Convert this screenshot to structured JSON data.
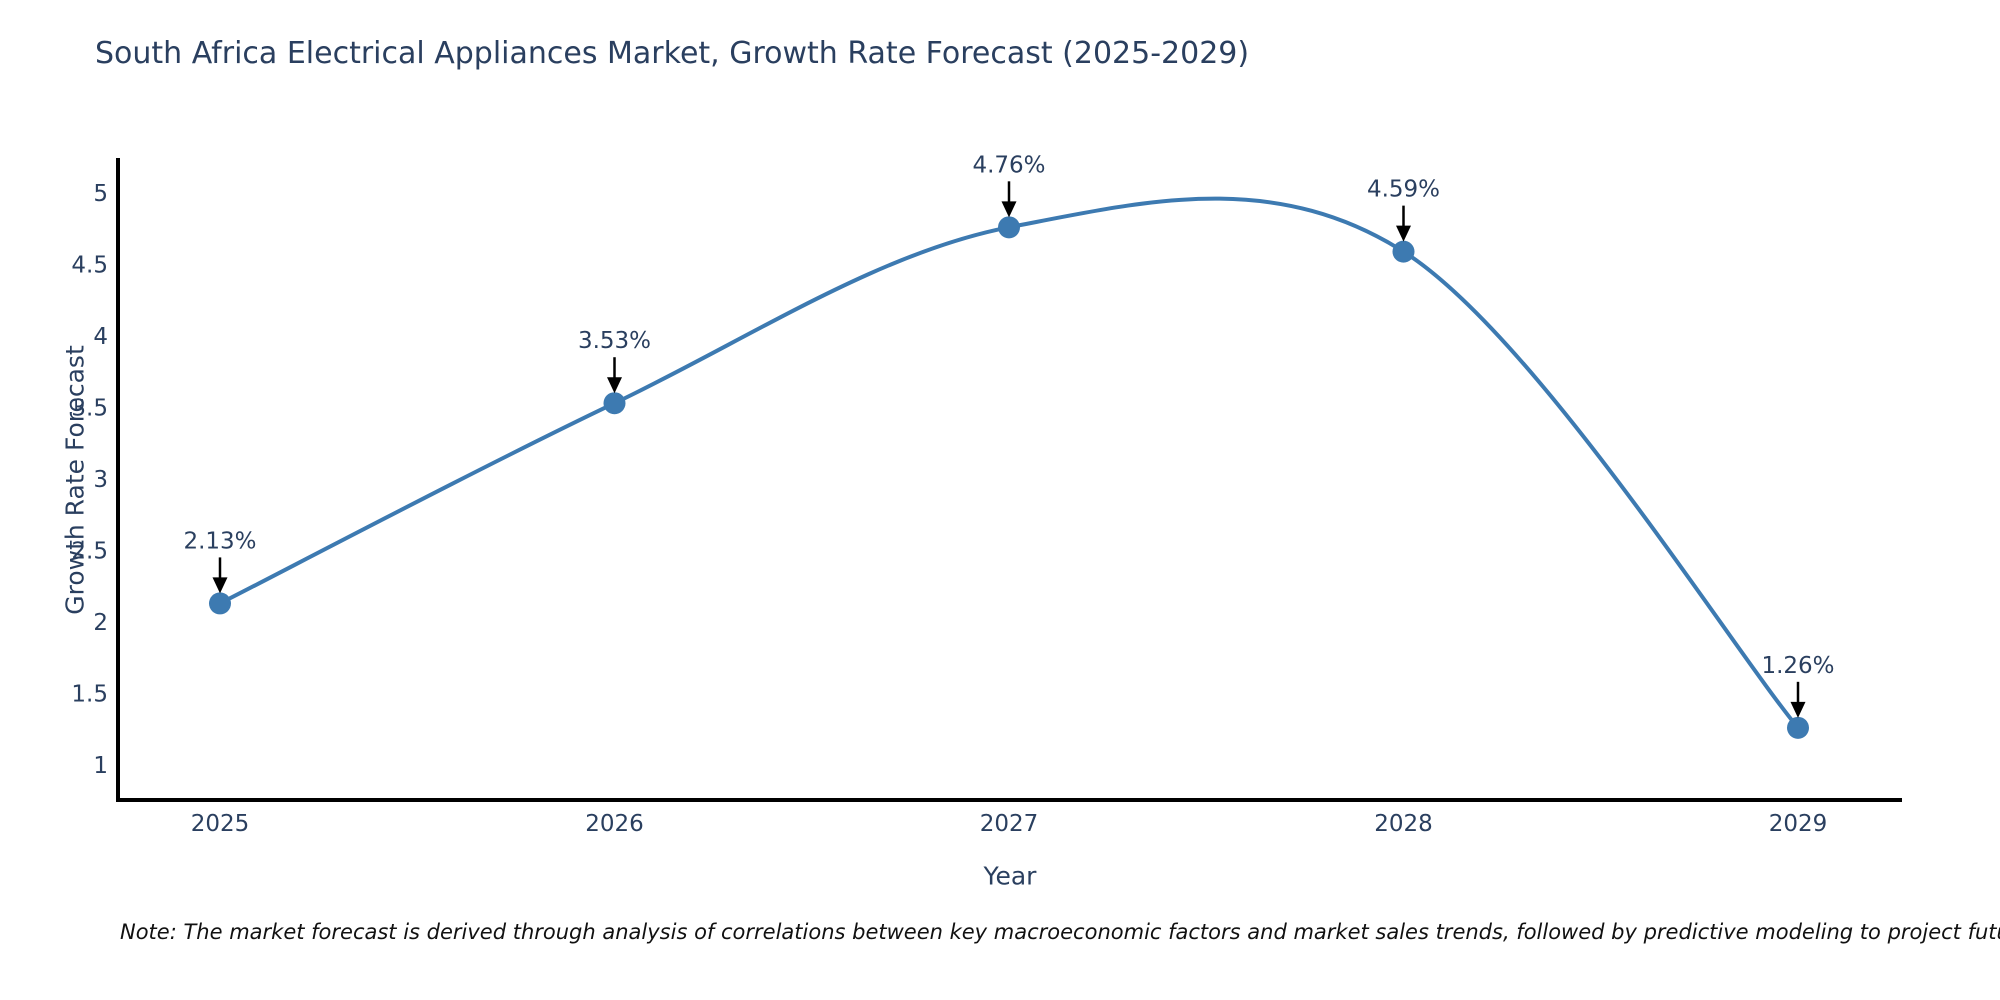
{
  "chart": {
    "note": "Note: The market forecast is derived through analysis of correlations between key macroeconomic factors and market sales trends, followed by predictive modeling to project future sales"
  },
  "chart_data": {
    "type": "line",
    "title": "South Africa Electrical Appliances Market, Growth Rate Forecast (2025-2029)",
    "xlabel": "Year",
    "ylabel": "Growth Rate Forecast",
    "categories": [
      "2025",
      "2026",
      "2027",
      "2028",
      "2029"
    ],
    "values": [
      2.13,
      3.53,
      4.76,
      4.59,
      1.26
    ],
    "point_labels": [
      "2.13%",
      "3.53%",
      "4.76%",
      "4.59%",
      "1.26%"
    ],
    "yticks": [
      1,
      1.5,
      2,
      2.5,
      3,
      3.5,
      4,
      4.5,
      5
    ],
    "ylim": [
      0.75,
      5.25
    ],
    "grid": false,
    "legend": "none",
    "line_shape": "spline",
    "colors": {
      "line": "#3d7ab1",
      "marker": "#3d7ab1",
      "text": "#2a3f5f",
      "axis": "#000000",
      "arrow": "#000000"
    }
  }
}
